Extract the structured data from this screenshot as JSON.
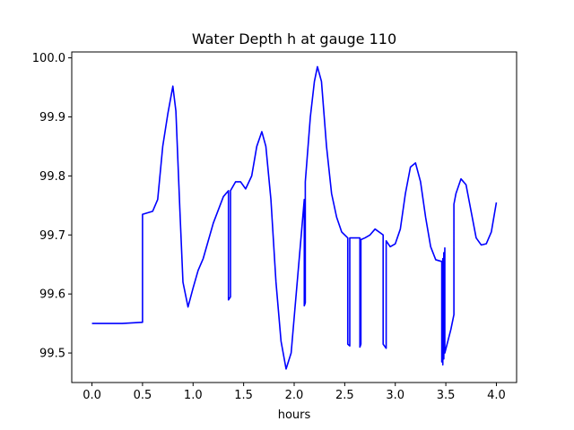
{
  "chart_data": {
    "type": "line",
    "title": "Water Depth h at gauge 110",
    "xlabel": "hours",
    "ylabel": "",
    "xlim": [
      -0.2,
      4.2
    ],
    "ylim": [
      99.45,
      100.01
    ],
    "xticks": [
      0.0,
      0.5,
      1.0,
      1.5,
      2.0,
      2.5,
      3.0,
      3.5,
      4.0
    ],
    "xtick_labels": [
      "0.0",
      "0.5",
      "1.0",
      "1.5",
      "2.0",
      "2.5",
      "3.0",
      "3.5",
      "4.0"
    ],
    "yticks": [
      99.5,
      99.6,
      99.7,
      99.8,
      99.9,
      100.0
    ],
    "ytick_labels": [
      "99.5",
      "99.6",
      "99.7",
      "99.8",
      "99.9",
      "100.0"
    ],
    "grid": false,
    "colors": {
      "series": "#0000ff"
    },
    "series": [
      {
        "x": [
          0.0,
          0.3,
          0.49,
          0.5,
          0.5,
          0.6,
          0.65,
          0.7,
          0.75,
          0.8,
          0.83,
          0.87,
          0.9,
          0.95,
          1.0,
          1.05,
          1.1,
          1.2,
          1.3,
          1.35,
          1.35,
          1.37,
          1.37,
          1.42,
          1.47,
          1.52,
          1.58,
          1.63,
          1.68,
          1.72,
          1.77,
          1.82,
          1.87,
          1.92,
          1.97,
          2.02,
          2.07,
          2.1,
          2.1,
          2.11,
          2.11,
          2.16,
          2.2,
          2.23,
          2.27,
          2.32,
          2.37,
          2.42,
          2.47,
          2.53,
          2.53,
          2.55,
          2.55,
          2.6,
          2.65,
          2.65,
          2.66,
          2.66,
          2.7,
          2.75,
          2.8,
          2.88,
          2.88,
          2.91,
          2.91,
          2.95,
          3.0,
          3.05,
          3.1,
          3.15,
          3.2,
          3.25,
          3.3,
          3.35,
          3.4,
          3.46,
          3.46,
          3.47,
          3.47,
          3.48,
          3.48,
          3.49,
          3.49,
          3.55,
          3.58,
          3.58,
          3.6,
          3.65,
          3.7,
          3.75,
          3.8,
          3.85,
          3.9,
          3.95,
          4.0
        ],
        "y": [
          99.55,
          99.55,
          99.552,
          99.552,
          99.735,
          99.74,
          99.76,
          99.85,
          99.905,
          99.952,
          99.91,
          99.74,
          99.62,
          99.578,
          99.61,
          99.64,
          99.66,
          99.72,
          99.765,
          99.775,
          99.59,
          99.595,
          99.775,
          99.79,
          99.79,
          99.778,
          99.8,
          99.85,
          99.875,
          99.85,
          99.76,
          99.62,
          99.52,
          99.473,
          99.5,
          99.6,
          99.7,
          99.76,
          99.58,
          99.585,
          99.79,
          99.9,
          99.96,
          99.985,
          99.96,
          99.85,
          99.77,
          99.73,
          99.705,
          99.695,
          99.515,
          99.512,
          99.695,
          99.695,
          99.695,
          99.51,
          99.515,
          99.692,
          99.695,
          99.7,
          99.71,
          99.7,
          99.515,
          99.508,
          99.69,
          99.68,
          99.685,
          99.71,
          99.77,
          99.815,
          99.822,
          99.79,
          99.73,
          99.68,
          99.658,
          99.655,
          99.485,
          99.66,
          99.48,
          99.67,
          99.49,
          99.678,
          99.5,
          99.54,
          99.565,
          99.752,
          99.77,
          99.795,
          99.785,
          99.74,
          99.695,
          99.683,
          99.685,
          99.705,
          99.755
        ]
      }
    ]
  }
}
